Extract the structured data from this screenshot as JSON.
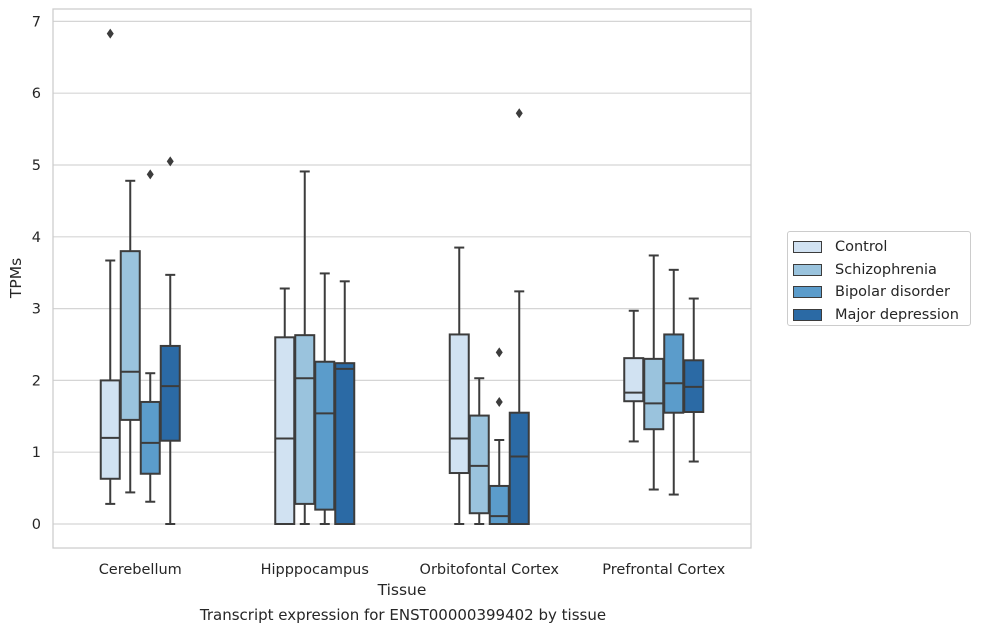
{
  "caption": "Transcript expression for ENST00000399402 by tissue",
  "chart_data": {
    "type": "boxplot",
    "title": "",
    "xlabel": "Tissue",
    "ylabel": "TPMs",
    "ylim": [
      -0.33,
      7.2
    ],
    "yticks": [
      "0",
      "1",
      "2",
      "3",
      "4",
      "5",
      "6",
      "7"
    ],
    "grid": "horizontal",
    "legend_position": "right",
    "categories": [
      "Cerebellum",
      "Hipppocampus",
      "Orbitofontal Cortex",
      "Prefrontal Cortex"
    ],
    "series": [
      {
        "name": "Control",
        "color": "#d1e2f2",
        "boxes": [
          {
            "whisker_low": 0.28,
            "q1": 0.63,
            "median": 1.2,
            "q3": 2.0,
            "whisker_high": 3.67,
            "outliers": [
              6.83
            ]
          },
          {
            "whisker_low": 0.0,
            "q1": 0.0,
            "median": 1.19,
            "q3": 2.6,
            "whisker_high": 3.28,
            "outliers": []
          },
          {
            "whisker_low": 0.0,
            "q1": 0.71,
            "median": 1.19,
            "q3": 2.64,
            "whisker_high": 3.85,
            "outliers": []
          },
          {
            "whisker_low": 1.15,
            "q1": 1.71,
            "median": 1.83,
            "q3": 2.31,
            "whisker_high": 2.97,
            "outliers": []
          }
        ]
      },
      {
        "name": "Schizophrenia",
        "color": "#9ac3dd",
        "boxes": [
          {
            "whisker_low": 0.44,
            "q1": 1.45,
            "median": 2.12,
            "q3": 3.8,
            "whisker_high": 4.78,
            "outliers": []
          },
          {
            "whisker_low": 0.0,
            "q1": 0.28,
            "median": 2.03,
            "q3": 2.63,
            "whisker_high": 4.91,
            "outliers": []
          },
          {
            "whisker_low": 0.0,
            "q1": 0.15,
            "median": 0.81,
            "q3": 1.51,
            "whisker_high": 2.03,
            "outliers": []
          },
          {
            "whisker_low": 0.48,
            "q1": 1.32,
            "median": 1.68,
            "q3": 2.3,
            "whisker_high": 3.74,
            "outliers": []
          }
        ]
      },
      {
        "name": "Bipolar disorder",
        "color": "#5b9ccb",
        "boxes": [
          {
            "whisker_low": 0.31,
            "q1": 0.7,
            "median": 1.13,
            "q3": 1.7,
            "whisker_high": 2.1,
            "outliers": [
              4.87
            ]
          },
          {
            "whisker_low": 0.0,
            "q1": 0.2,
            "median": 1.54,
            "q3": 2.26,
            "whisker_high": 3.49,
            "outliers": []
          },
          {
            "whisker_low": 0.0,
            "q1": 0.0,
            "median": 0.11,
            "q3": 0.53,
            "whisker_high": 1.17,
            "outliers": [
              2.39,
              1.7
            ]
          },
          {
            "whisker_low": 0.41,
            "q1": 1.55,
            "median": 1.96,
            "q3": 2.64,
            "whisker_high": 3.54,
            "outliers": []
          }
        ]
      },
      {
        "name": "Major depression",
        "color": "#2b6aa5",
        "boxes": [
          {
            "whisker_low": 0.0,
            "q1": 1.16,
            "median": 1.92,
            "q3": 2.48,
            "whisker_high": 3.47,
            "outliers": [
              5.05
            ]
          },
          {
            "whisker_low": 0.0,
            "q1": 0.0,
            "median": 2.16,
            "q3": 2.24,
            "whisker_high": 3.38,
            "outliers": []
          },
          {
            "whisker_low": 0.0,
            "q1": 0.0,
            "median": 0.94,
            "q3": 1.55,
            "whisker_high": 3.24,
            "outliers": [
              5.72
            ]
          },
          {
            "whisker_low": 0.87,
            "q1": 1.56,
            "median": 1.91,
            "q3": 2.28,
            "whisker_high": 3.14,
            "outliers": []
          }
        ]
      }
    ]
  }
}
